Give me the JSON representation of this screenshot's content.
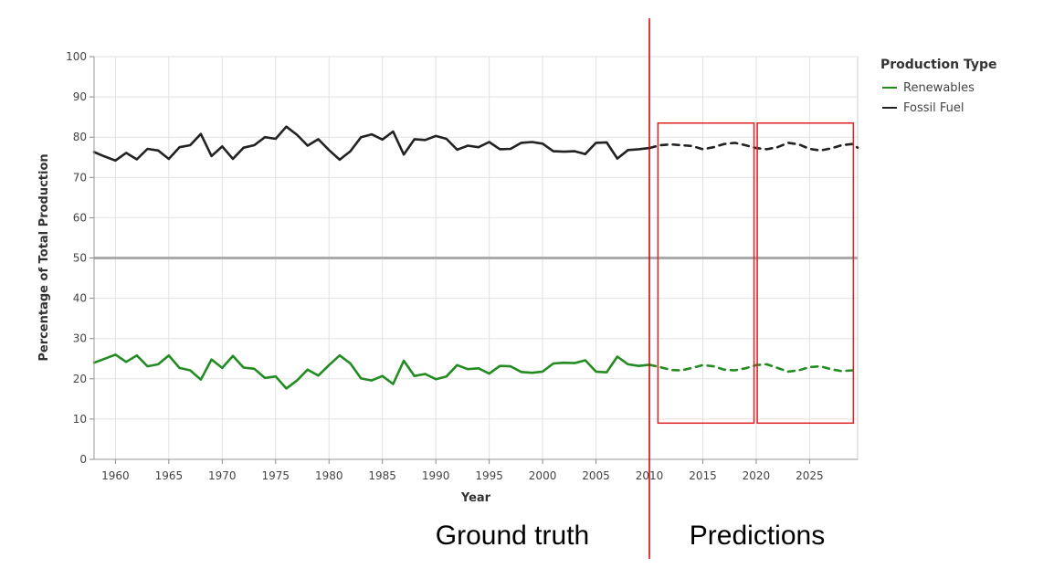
{
  "chart_data": {
    "type": "line",
    "xlabel": "Year",
    "ylabel": "Percentage of Total Production",
    "xlim": [
      1958,
      2029.5
    ],
    "ylim": [
      0,
      100
    ],
    "x_ticks": [
      1960,
      1965,
      1970,
      1975,
      1980,
      1985,
      1990,
      1995,
      2000,
      2005,
      2010,
      2015,
      2020,
      2025
    ],
    "y_ticks": [
      0,
      10,
      20,
      30,
      40,
      50,
      60,
      70,
      80,
      90,
      100
    ],
    "grid": true,
    "reference_line": {
      "y": 50,
      "color": "#aaaaaa"
    },
    "legend": {
      "title": "Production Type",
      "position": "top-right"
    },
    "series": [
      {
        "name": "Renewables",
        "color": "#228B22",
        "x": [
          1958,
          1959,
          1960,
          1961,
          1962,
          1963,
          1964,
          1965,
          1966,
          1967,
          1968,
          1969,
          1970,
          1971,
          1972,
          1973,
          1974,
          1975,
          1976,
          1977,
          1978,
          1979,
          1980,
          1981,
          1982,
          1983,
          1984,
          1985,
          1986,
          1987,
          1988,
          1989,
          1990,
          1991,
          1992,
          1993,
          1994,
          1995,
          1996,
          1997,
          1998,
          1999,
          2000,
          2001,
          2002,
          2003,
          2004,
          2005,
          2006,
          2007,
          2008,
          2009,
          2010
        ],
        "values": [
          24,
          25,
          26,
          24.2,
          25.8,
          23.1,
          23.6,
          25.8,
          22.7,
          22.1,
          19.8,
          24.8,
          22.7,
          25.7,
          22.8,
          22.5,
          20.2,
          20.6,
          17.6,
          19.6,
          22.3,
          20.8,
          23.4,
          25.8,
          23.8,
          20.1,
          19.6,
          20.7,
          18.7,
          24.5,
          20.7,
          21.2,
          19.9,
          20.6,
          23.4,
          22.4,
          22.6,
          21.3,
          23.2,
          23.1,
          21.7,
          21.5,
          21.8,
          23.8,
          24,
          23.9,
          24.6,
          21.8,
          21.6,
          25.5,
          23.6,
          23.2,
          23.5
        ]
      },
      {
        "name": "Fossil Fuel",
        "color": "#222222",
        "x": [
          1958,
          1959,
          1960,
          1961,
          1962,
          1963,
          1964,
          1965,
          1966,
          1967,
          1968,
          1969,
          1970,
          1971,
          1972,
          1973,
          1974,
          1975,
          1976,
          1977,
          1978,
          1979,
          1980,
          1981,
          1982,
          1983,
          1984,
          1985,
          1986,
          1987,
          1988,
          1989,
          1990,
          1991,
          1992,
          1993,
          1994,
          1995,
          1996,
          1997,
          1998,
          1999,
          2000,
          2001,
          2002,
          2003,
          2004,
          2005,
          2006,
          2007,
          2008,
          2009,
          2010
        ],
        "values": [
          76.3,
          75.2,
          74.2,
          76.1,
          74.5,
          77.1,
          76.7,
          74.6,
          77.5,
          78,
          80.8,
          75.3,
          77.7,
          74.6,
          77.4,
          78,
          80,
          79.6,
          82.6,
          80.6,
          77.9,
          79.5,
          76.8,
          74.4,
          76.5,
          80,
          80.7,
          79.4,
          81.4,
          75.7,
          79.5,
          79.3,
          80.3,
          79.6,
          76.9,
          77.9,
          77.5,
          78.8,
          77,
          77.1,
          78.6,
          78.8,
          78.4,
          76.5,
          76.4,
          76.5,
          75.8,
          78.6,
          78.7,
          74.7,
          76.8,
          77,
          77.3
        ]
      },
      {
        "name": "Renewables (predicted)",
        "color": "#228B22",
        "dashed": true,
        "x": [
          2010,
          2011,
          2012,
          2013,
          2014,
          2015,
          2016,
          2017,
          2018,
          2019,
          2020,
          2021,
          2022,
          2023,
          2024,
          2025,
          2026,
          2027,
          2028,
          2029,
          2029.5
        ],
        "values": [
          23.5,
          22.9,
          22.2,
          22.1,
          22.7,
          23.4,
          23.1,
          22.3,
          22.1,
          22.6,
          23.4,
          23.6,
          22.7,
          21.8,
          22.1,
          22.9,
          23.1,
          22.4,
          21.9,
          22.1,
          22.3
        ]
      },
      {
        "name": "Fossil Fuel (predicted)",
        "color": "#222222",
        "dashed": true,
        "x": [
          2010,
          2011,
          2012,
          2013,
          2014,
          2015,
          2016,
          2017,
          2018,
          2019,
          2020,
          2021,
          2022,
          2023,
          2024,
          2025,
          2026,
          2027,
          2028,
          2029,
          2029.5
        ],
        "values": [
          77.3,
          78,
          78.2,
          78,
          77.8,
          77,
          77.5,
          78.3,
          78.6,
          78,
          77.3,
          77,
          77.5,
          78.6,
          78.2,
          77.1,
          76.7,
          77.2,
          78,
          78.3,
          77.4
        ]
      }
    ],
    "legend_entries": [
      {
        "label": "Renewables",
        "color": "#228B22"
      },
      {
        "label": "Fossil Fuel",
        "color": "#222222"
      }
    ],
    "annotations": {
      "divider_year": 2010,
      "divider_color": "#cc0000",
      "boxes": [
        {
          "x": [
            2010.8,
            2019.8
          ],
          "y": [
            9,
            83.5
          ],
          "color": "#dd2222"
        },
        {
          "x": [
            2020.1,
            2029.1
          ],
          "y": [
            9,
            83.5
          ],
          "color": "#dd2222"
        }
      ],
      "region_labels": [
        "Ground truth",
        "Predictions"
      ]
    }
  }
}
